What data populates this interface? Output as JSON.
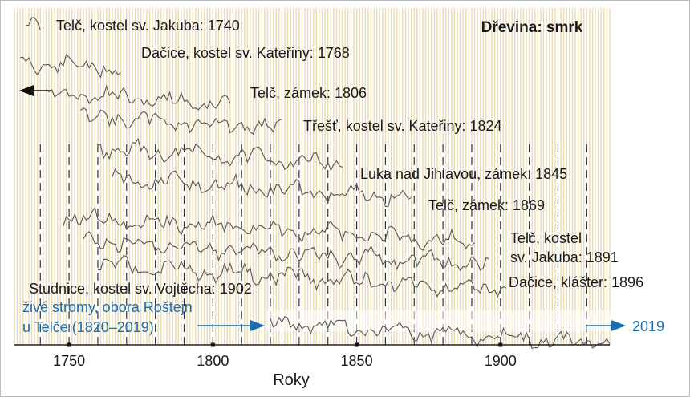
{
  "chart_data": {
    "type": "line",
    "title": "Dřevina: smrk",
    "xlabel": "Roky",
    "ylabel": "",
    "xlim": [
      1731,
      1938
    ],
    "x_ticks": [
      1750,
      1800,
      1850,
      1900
    ],
    "grid": "vertical stripes every year; dashed lines every 10 years",
    "colors": {
      "stripe": "#e8d9b0",
      "background": "#ffffff",
      "series": "#555555",
      "text": "#1a1a1a",
      "accent": "#1a6fb0"
    },
    "series": [
      {
        "name": "Telč, kostel sv. Jakuba: 1740",
        "start": 1735,
        "end": 1740
      },
      {
        "name": "Dačice, kostel sv. Kateřiny: 1768",
        "start": 1733,
        "end": 1768
      },
      {
        "name": "Telč, zámek: 1806",
        "start": 1742,
        "end": 1806
      },
      {
        "name": "Třešť, kostel sv. Kateřiny: 1824",
        "start": 1754,
        "end": 1824
      },
      {
        "name": "Luka nad Jihlavou, zámek: 1845",
        "start": 1760,
        "end": 1845
      },
      {
        "name": "Telč, zámek: 1869",
        "start": 1765,
        "end": 1869
      },
      {
        "name": "Telč, kostel sv. Jakuba: 1891",
        "start": 1748,
        "end": 1891
      },
      {
        "name": "Dačice, klášter: 1896",
        "start": 1755,
        "end": 1896
      },
      {
        "name": "Studnice, kostel sv. Vojtěcha: 1902",
        "start": 1760,
        "end": 1902
      },
      {
        "name": "živé stromy, obora Roštejn u Telče (1820–2019)",
        "start": 1820,
        "end": 2019
      }
    ],
    "labels": {
      "s0": "Telč, kostel sv. Jakuba: 1740",
      "s1": "Dačice, kostel sv. Kateřiny: 1768",
      "s2": "Telč, zámek: 1806",
      "s3": "Třešť, kostel sv. Kateřiny: 1824",
      "s4": "Luka nad Jihlavou, zámek: 1845",
      "s5": "Telč, zámek: 1869",
      "s6_line1": "Telč, kostel",
      "s6_line2": "sv. Jakuba: 1891",
      "s7": "Dačice, klášter: 1896",
      "s8": "Studnice, kostel sv. Vojtěcha: 1902",
      "s9_line1": "živé stromy, obora Roštejn",
      "s9_line2": "u Telče (1820–2019)",
      "end_year": "2019"
    }
  }
}
